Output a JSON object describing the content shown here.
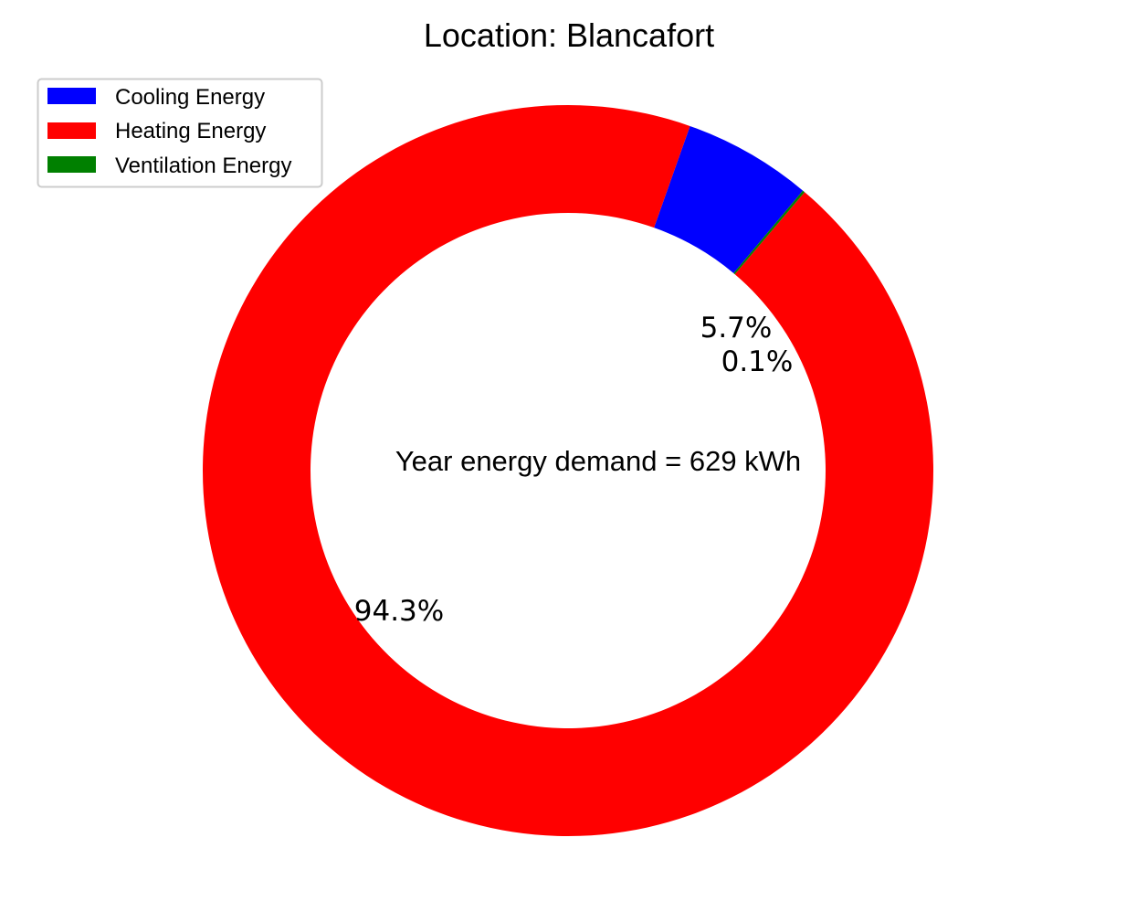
{
  "chart_data": {
    "type": "pie",
    "donut": true,
    "title": "Location: Blancafort",
    "center_label": "Year energy demand = 629 kWh",
    "series": [
      {
        "name": "Cooling Energy",
        "value": 5.7,
        "label": "5.7%",
        "color": "#0000ff"
      },
      {
        "name": "Heating Energy",
        "value": 94.3,
        "label": "94.3%",
        "color": "#ff0000"
      },
      {
        "name": "Ventilation Energy",
        "value": 0.1,
        "label": "0.1%",
        "color": "#008000"
      }
    ],
    "legend": {
      "placement": "top-left",
      "entries": [
        "Cooling Energy",
        "Heating Energy",
        "Ventilation Energy"
      ]
    }
  }
}
